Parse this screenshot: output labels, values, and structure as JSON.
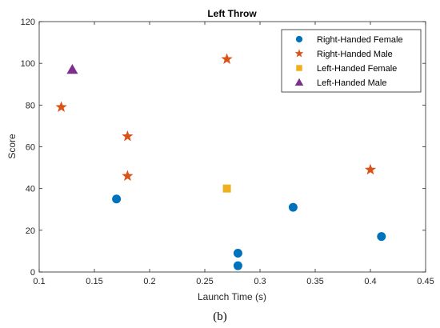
{
  "chart_data": {
    "type": "scatter",
    "title": "Left Throw",
    "xlabel": "Launch Time (s)",
    "ylabel": "Score",
    "xlim": [
      0.1,
      0.45
    ],
    "ylim": [
      0,
      120
    ],
    "xticks": [
      "0.1",
      "0.15",
      "0.2",
      "0.25",
      "0.3",
      "0.35",
      "0.4",
      "0.45"
    ],
    "yticks": [
      "0",
      "20",
      "40",
      "60",
      "80",
      "100",
      "120"
    ],
    "grid": false,
    "legend_position": "top-right",
    "series": [
      {
        "name": "Right-Handed Female",
        "marker": "circle",
        "color": "#0072BD",
        "x": [
          0.17,
          0.28,
          0.28,
          0.33,
          0.41
        ],
        "y": [
          35,
          9,
          3,
          31,
          17
        ]
      },
      {
        "name": "Right-Handed Male",
        "marker": "star",
        "color": "#D95319",
        "x": [
          0.12,
          0.18,
          0.18,
          0.27,
          0.4
        ],
        "y": [
          79,
          65,
          46,
          102,
          49
        ]
      },
      {
        "name": "Left-Handed Female",
        "marker": "square",
        "color": "#EDB120",
        "x": [
          0.27
        ],
        "y": [
          40
        ]
      },
      {
        "name": "Left-Handed Male",
        "marker": "triangle",
        "color": "#7E2F8E",
        "x": [
          0.13
        ],
        "y": [
          97
        ]
      }
    ]
  },
  "subfigure_label": "(b)"
}
